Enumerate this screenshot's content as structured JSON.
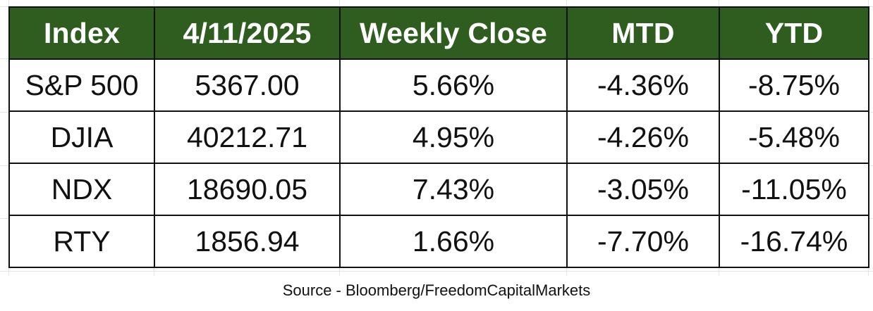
{
  "table": {
    "header_color": "#2e5d1f",
    "header_text_color": "#ffffff",
    "columns": [
      "Index",
      "4/11/2025",
      "Weekly Close",
      "MTD",
      "YTD"
    ],
    "rows": [
      [
        "S&P 500",
        "5367.00",
        "5.66%",
        "-4.36%",
        "-8.75%"
      ],
      [
        "DJIA",
        "40212.71",
        "4.95%",
        "-4.26%",
        "-5.48%"
      ],
      [
        "NDX",
        "18690.05",
        "7.43%",
        "-3.05%",
        "-11.05%"
      ],
      [
        "RTY",
        "1856.94",
        "1.66%",
        "-7.70%",
        "-16.74%"
      ]
    ]
  },
  "source": "Source - Bloomberg/FreedomCapitalMarkets"
}
